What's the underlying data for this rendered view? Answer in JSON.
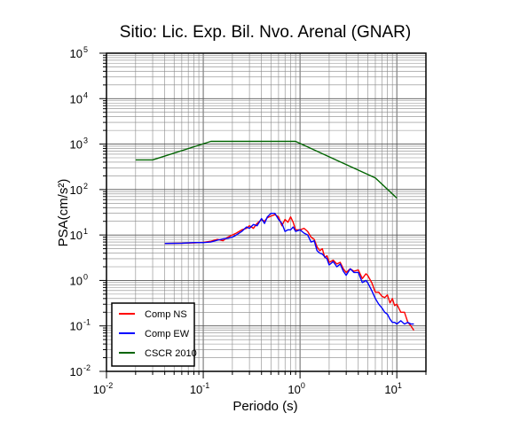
{
  "chart_data": {
    "type": "line",
    "title": "Sitio: Lic. Exp. Bil. Nvo. Arenal (GNAR)",
    "xlabel": "Periodo (s)",
    "ylabel": "PSA(cm/s²)",
    "xscale": "log",
    "yscale": "log",
    "xlim": [
      0.01,
      20
    ],
    "ylim": [
      0.01,
      100000
    ],
    "grid": true,
    "legend_position": "bottom-left",
    "x_ticks": [
      {
        "base": "10",
        "exp": "-2",
        "value": 0.01
      },
      {
        "base": "10",
        "exp": "-1",
        "value": 0.1
      },
      {
        "base": "10",
        "exp": "0",
        "value": 1
      },
      {
        "base": "10",
        "exp": "1",
        "value": 10
      }
    ],
    "y_ticks": [
      {
        "base": "10",
        "exp": "-2",
        "value": 0.01
      },
      {
        "base": "10",
        "exp": "-1",
        "value": 0.1
      },
      {
        "base": "10",
        "exp": "0",
        "value": 1
      },
      {
        "base": "10",
        "exp": "1",
        "value": 10
      },
      {
        "base": "10",
        "exp": "2",
        "value": 100
      },
      {
        "base": "10",
        "exp": "3",
        "value": 1000
      },
      {
        "base": "10",
        "exp": "4",
        "value": 10000
      },
      {
        "base": "10",
        "exp": "5",
        "value": 100000
      }
    ],
    "series": [
      {
        "name": "Comp NS",
        "color": "#ff0000",
        "x": [
          0.04,
          0.06,
          0.08,
          0.1,
          0.12,
          0.14,
          0.16,
          0.18,
          0.2,
          0.22,
          0.25,
          0.28,
          0.3,
          0.33,
          0.36,
          0.4,
          0.43,
          0.46,
          0.5,
          0.55,
          0.6,
          0.65,
          0.7,
          0.75,
          0.8,
          0.85,
          0.9,
          1.0,
          1.1,
          1.2,
          1.3,
          1.4,
          1.5,
          1.6,
          1.7,
          1.8,
          1.9,
          2.0,
          2.2,
          2.4,
          2.6,
          2.8,
          3.0,
          3.3,
          3.6,
          4.0,
          4.4,
          4.8,
          5.0,
          5.5,
          6.0,
          6.5,
          7.0,
          7.5,
          8.0,
          8.5,
          9.0,
          9.5,
          10,
          11,
          12,
          13,
          14,
          15
        ],
        "y": [
          6.5,
          6.6,
          6.7,
          6.9,
          7.3,
          8.0,
          7.5,
          9.0,
          10,
          11,
          13,
          14,
          16,
          14,
          18,
          22,
          20,
          24,
          26,
          28,
          25,
          16,
          22,
          19,
          25,
          19,
          13,
          13,
          14,
          12,
          9,
          8,
          5.5,
          4.5,
          5,
          3.2,
          3.5,
          2.5,
          2.8,
          2.3,
          2.5,
          1.8,
          1.5,
          1.8,
          1.6,
          1.7,
          1.1,
          1.4,
          1.3,
          0.9,
          0.55,
          0.55,
          0.45,
          0.42,
          0.48,
          0.32,
          0.4,
          0.28,
          0.3,
          0.2,
          0.2,
          0.12,
          0.1,
          0.08
        ]
      },
      {
        "name": "Comp EW",
        "color": "#0000ff",
        "x": [
          0.04,
          0.06,
          0.08,
          0.1,
          0.12,
          0.14,
          0.16,
          0.18,
          0.2,
          0.22,
          0.25,
          0.28,
          0.3,
          0.33,
          0.36,
          0.4,
          0.43,
          0.46,
          0.5,
          0.55,
          0.6,
          0.65,
          0.7,
          0.75,
          0.8,
          0.85,
          0.9,
          1.0,
          1.1,
          1.2,
          1.3,
          1.4,
          1.5,
          1.6,
          1.7,
          1.8,
          1.9,
          2.0,
          2.2,
          2.4,
          2.6,
          2.8,
          3.0,
          3.3,
          3.6,
          4.0,
          4.4,
          4.8,
          5.0,
          5.5,
          6.0,
          6.5,
          7.0,
          7.5,
          8.0,
          8.5,
          9.0,
          9.5,
          10,
          11,
          12,
          13,
          14,
          15
        ],
        "y": [
          6.5,
          6.6,
          6.8,
          6.8,
          7.0,
          7.7,
          8.2,
          8.5,
          9,
          10,
          12,
          15,
          14,
          17,
          16,
          23,
          18,
          25,
          30,
          30,
          22,
          18,
          12,
          13,
          13,
          15,
          12,
          13,
          11,
          10,
          7,
          7.5,
          4.5,
          4,
          3.8,
          3.3,
          3.0,
          2.2,
          2.6,
          2.0,
          2.3,
          1.6,
          1.3,
          1.8,
          1.5,
          1.5,
          0.9,
          1.0,
          0.9,
          0.6,
          0.4,
          0.3,
          0.25,
          0.2,
          0.18,
          0.14,
          0.12,
          0.12,
          0.11,
          0.13,
          0.11,
          0.12,
          0.11,
          0.11
        ]
      },
      {
        "name": "CSCR 2010",
        "color": "#006400",
        "x": [
          0.02,
          0.03,
          0.12,
          0.9,
          6.0,
          10
        ],
        "y": [
          450,
          450,
          1150,
          1150,
          180,
          65
        ]
      }
    ]
  }
}
